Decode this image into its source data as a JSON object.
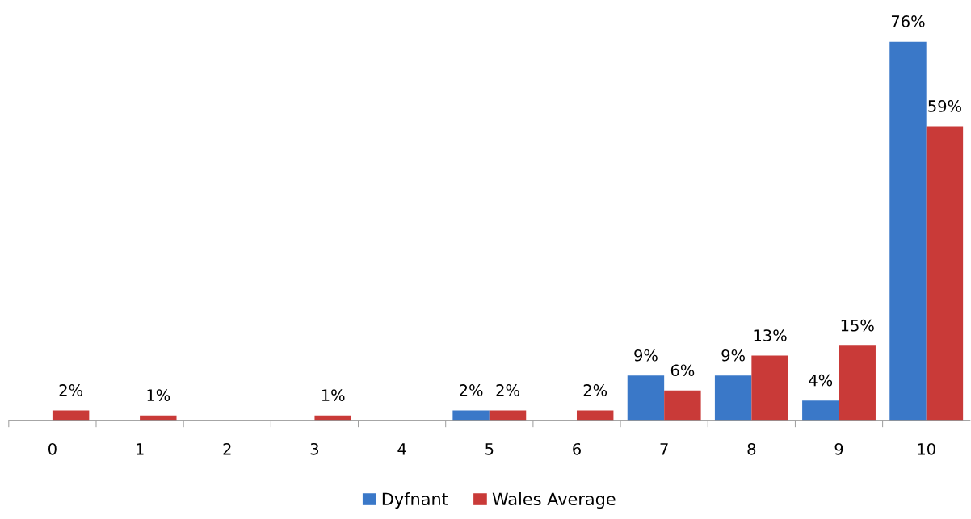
{
  "chart_data": {
    "type": "bar",
    "categories": [
      "0",
      "1",
      "2",
      "3",
      "4",
      "5",
      "6",
      "7",
      "8",
      "9",
      "10"
    ],
    "series": [
      {
        "name": "Dyfnant",
        "color": "#3a78c8",
        "values": [
          0,
          0,
          0,
          0,
          0,
          2,
          0,
          9,
          9,
          4,
          76
        ],
        "value_labels": [
          null,
          null,
          null,
          null,
          null,
          "2%",
          null,
          "9%",
          "9%",
          "4%",
          "76%"
        ]
      },
      {
        "name": "Wales Average",
        "color": "#c93a38",
        "values": [
          2,
          1,
          0,
          1,
          0,
          2,
          2,
          6,
          13,
          15,
          59
        ],
        "value_labels": [
          "2%",
          "1%",
          null,
          "1%",
          null,
          "2%",
          "2%",
          "6%",
          "13%",
          "15%",
          "59%"
        ]
      }
    ],
    "tick_labels": "x",
    "grid": false,
    "legend": "bottom"
  }
}
